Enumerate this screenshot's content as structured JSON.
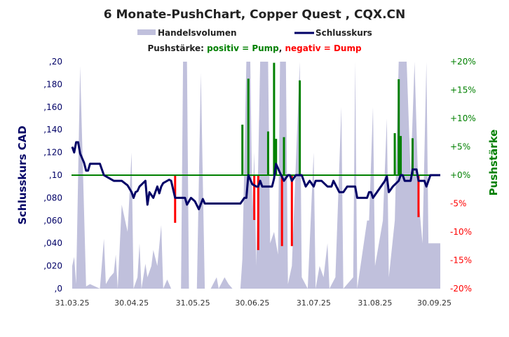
{
  "chart_data": {
    "type": "bar+line+area",
    "title": "6 Monate-PushChart,  Copper Quest , CQX.CN",
    "legend": {
      "volume_label": "Handelsvolumen",
      "close_label": "Schlusskurs",
      "push_prefix": "Pushstärke: ",
      "push_positive": "positiv = Pump",
      "push_sep": ", ",
      "push_negative": "negativ = Dump",
      "placement": "top"
    },
    "ylabel_left": "Schlusskurs CAD",
    "ylabel_right": "Pushstärke",
    "ylim_left": [
      0,
      0.2
    ],
    "ylim_right": [
      -20,
      20
    ],
    "xlim": [
      "2025-03-31",
      "2025-10-03"
    ],
    "grid": false,
    "left_ticks": [
      {
        "v": 0.2,
        "label": ",20"
      },
      {
        "v": 0.18,
        "label": ",180"
      },
      {
        "v": 0.16,
        "label": ",160"
      },
      {
        "v": 0.14,
        "label": ",140"
      },
      {
        "v": 0.12,
        "label": ",120"
      },
      {
        "v": 0.1,
        "label": ",10"
      },
      {
        "v": 0.08,
        "label": ",080"
      },
      {
        "v": 0.06,
        "label": ",060"
      },
      {
        "v": 0.04,
        "label": ",040"
      },
      {
        "v": 0.02,
        "label": ",020"
      },
      {
        "v": 0,
        "label": ",0"
      }
    ],
    "right_ticks": [
      {
        "v": 20,
        "label": "+20%"
      },
      {
        "v": 15,
        "label": "+15%"
      },
      {
        "v": 10,
        "label": "+10%"
      },
      {
        "v": 5,
        "label": "+5%"
      },
      {
        "v": 0,
        "label": "+0%"
      },
      {
        "v": -5,
        "label": "-5%"
      },
      {
        "v": -10,
        "label": "-10%"
      },
      {
        "v": -15,
        "label": "-15%"
      },
      {
        "v": -20,
        "label": "-20%"
      }
    ],
    "x_ticks": [
      {
        "date": "2025-03-31",
        "label": "31.03.25"
      },
      {
        "date": "2025-04-30",
        "label": "30.04.25"
      },
      {
        "date": "2025-05-31",
        "label": "31.05.25"
      },
      {
        "date": "2025-06-30",
        "label": "30.06.25"
      },
      {
        "date": "2025-07-31",
        "label": "31.07.25"
      },
      {
        "date": "2025-08-31",
        "label": "31.08.25"
      },
      {
        "date": "2025-09-30",
        "label": "30.09.25"
      }
    ],
    "colors": {
      "volume": "#c0c0dc",
      "close": "#000066",
      "pump": "#008000",
      "dump": "#ff0000",
      "zero_line": "#008000",
      "title": "#222222"
    },
    "close": [
      [
        "2025-03-31",
        0.125
      ],
      [
        "2025-04-01",
        0.12
      ],
      [
        "2025-04-02",
        0.129
      ],
      [
        "2025-04-03",
        0.129
      ],
      [
        "2025-04-04",
        0.119
      ],
      [
        "2025-04-06",
        0.111
      ],
      [
        "2025-04-07",
        0.104
      ],
      [
        "2025-04-08",
        0.104
      ],
      [
        "2025-04-09",
        0.11
      ],
      [
        "2025-04-14",
        0.11
      ],
      [
        "2025-04-16",
        0.1
      ],
      [
        "2025-04-21",
        0.095
      ],
      [
        "2025-04-25",
        0.095
      ],
      [
        "2025-04-28",
        0.091
      ],
      [
        "2025-04-30",
        0.085
      ],
      [
        "2025-05-01",
        0.08
      ],
      [
        "2025-05-02",
        0.085
      ],
      [
        "2025-05-03",
        0.086
      ],
      [
        "2025-05-04",
        0.09
      ],
      [
        "2025-05-07",
        0.095
      ],
      [
        "2025-05-08",
        0.074
      ],
      [
        "2025-05-09",
        0.085
      ],
      [
        "2025-05-11",
        0.08
      ],
      [
        "2025-05-13",
        0.09
      ],
      [
        "2025-05-14",
        0.084
      ],
      [
        "2025-05-15",
        0.09
      ],
      [
        "2025-05-16",
        0.093
      ],
      [
        "2025-05-19",
        0.096
      ],
      [
        "2025-05-20",
        0.095
      ],
      [
        "2025-05-22",
        0.08
      ],
      [
        "2025-05-27",
        0.08
      ],
      [
        "2025-05-28",
        0.074
      ],
      [
        "2025-05-30",
        0.08
      ],
      [
        "2025-06-01",
        0.077
      ],
      [
        "2025-06-03",
        0.07
      ],
      [
        "2025-06-05",
        0.079
      ],
      [
        "2025-06-06",
        0.075
      ],
      [
        "2025-06-24",
        0.075
      ],
      [
        "2025-06-26",
        0.08
      ],
      [
        "2025-06-27",
        0.08
      ],
      [
        "2025-06-28",
        0.1
      ],
      [
        "2025-06-30",
        0.092
      ],
      [
        "2025-07-02",
        0.09
      ],
      [
        "2025-07-03",
        0.09
      ],
      [
        "2025-07-04",
        0.095
      ],
      [
        "2025-07-05",
        0.09
      ],
      [
        "2025-07-10",
        0.09
      ],
      [
        "2025-07-11",
        0.097
      ],
      [
        "2025-07-12",
        0.11
      ],
      [
        "2025-07-14",
        0.102
      ],
      [
        "2025-07-16",
        0.095
      ],
      [
        "2025-07-18",
        0.1
      ],
      [
        "2025-07-19",
        0.1
      ],
      [
        "2025-07-20",
        0.095
      ],
      [
        "2025-07-22",
        0.1
      ],
      [
        "2025-07-25",
        0.1
      ],
      [
        "2025-07-27",
        0.09
      ],
      [
        "2025-07-29",
        0.095
      ],
      [
        "2025-07-31",
        0.09
      ],
      [
        "2025-08-01",
        0.095
      ],
      [
        "2025-08-04",
        0.095
      ],
      [
        "2025-08-07",
        0.09
      ],
      [
        "2025-08-09",
        0.09
      ],
      [
        "2025-08-10",
        0.095
      ],
      [
        "2025-08-13",
        0.085
      ],
      [
        "2025-08-15",
        0.085
      ],
      [
        "2025-08-17",
        0.09
      ],
      [
        "2025-08-21",
        0.09
      ],
      [
        "2025-08-22",
        0.08
      ],
      [
        "2025-08-27",
        0.08
      ],
      [
        "2025-08-28",
        0.085
      ],
      [
        "2025-08-29",
        0.085
      ],
      [
        "2025-08-30",
        0.08
      ],
      [
        "2025-09-01",
        0.085
      ],
      [
        "2025-09-05",
        0.095
      ],
      [
        "2025-09-06",
        0.099
      ],
      [
        "2025-09-07",
        0.085
      ],
      [
        "2025-09-09",
        0.09
      ],
      [
        "2025-09-12",
        0.095
      ],
      [
        "2025-09-13",
        0.1
      ],
      [
        "2025-09-14",
        0.1
      ],
      [
        "2025-09-15",
        0.095
      ],
      [
        "2025-09-18",
        0.095
      ],
      [
        "2025-09-19",
        0.105
      ],
      [
        "2025-09-21",
        0.105
      ],
      [
        "2025-09-22",
        0.095
      ],
      [
        "2025-09-25",
        0.095
      ],
      [
        "2025-09-26",
        0.09
      ],
      [
        "2025-09-28",
        0.1
      ],
      [
        "2025-10-03",
        0.1
      ]
    ],
    "push": [
      [
        "2025-05-22",
        -8.4
      ],
      [
        "2025-06-25",
        8.9
      ],
      [
        "2025-06-28",
        17.0
      ],
      [
        "2025-07-01",
        -7.9
      ],
      [
        "2025-07-03",
        -13.2
      ],
      [
        "2025-07-08",
        7.7
      ],
      [
        "2025-07-11",
        19.8
      ],
      [
        "2025-07-12",
        6.4
      ],
      [
        "2025-07-15",
        -12.5
      ],
      [
        "2025-07-16",
        6.7
      ],
      [
        "2025-07-20",
        -12.5
      ],
      [
        "2025-07-24",
        16.7
      ],
      [
        "2025-09-10",
        7.4
      ],
      [
        "2025-09-12",
        16.9
      ],
      [
        "2025-09-13",
        6.9
      ],
      [
        "2025-09-19",
        6.5
      ],
      [
        "2025-09-22",
        -7.4
      ]
    ],
    "volume_relative": [
      [
        "2025-03-31",
        0.1
      ],
      [
        "2025-04-01",
        0.14
      ],
      [
        "2025-04-02",
        0.02
      ],
      [
        "2025-04-04",
        0.98
      ],
      [
        "2025-04-07",
        0.01
      ],
      [
        "2025-04-09",
        0.02
      ],
      [
        "2025-04-14",
        0
      ],
      [
        "2025-04-16",
        0.22
      ],
      [
        "2025-04-17",
        0.02
      ],
      [
        "2025-04-19",
        0.05
      ],
      [
        "2025-04-21",
        0.07
      ],
      [
        "2025-04-22",
        0.15
      ],
      [
        "2025-04-23",
        0
      ],
      [
        "2025-04-25",
        0.37
      ],
      [
        "2025-04-28",
        0.25
      ],
      [
        "2025-04-30",
        0.6
      ],
      [
        "2025-05-01",
        0
      ],
      [
        "2025-05-03",
        0.05
      ],
      [
        "2025-05-04",
        0.2
      ],
      [
        "2025-05-05",
        0
      ],
      [
        "2025-05-07",
        0.11
      ],
      [
        "2025-05-08",
        0.05
      ],
      [
        "2025-05-10",
        0.1
      ],
      [
        "2025-05-11",
        0.17
      ],
      [
        "2025-05-13",
        0.1
      ],
      [
        "2025-05-15",
        0.28
      ],
      [
        "2025-05-16",
        0
      ],
      [
        "2025-05-18",
        0.04
      ],
      [
        "2025-05-20",
        0
      ],
      [
        "2025-05-25",
        0
      ],
      [
        "2025-05-26",
        1
      ],
      [
        "2025-05-28",
        1
      ],
      [
        "2025-05-29",
        0
      ],
      [
        "2025-06-02",
        0
      ],
      [
        "2025-06-04",
        0.95
      ],
      [
        "2025-06-06",
        0
      ],
      [
        "2025-06-09",
        0
      ],
      [
        "2025-06-12",
        0.05
      ],
      [
        "2025-06-13",
        0
      ],
      [
        "2025-06-16",
        0.05
      ],
      [
        "2025-06-18",
        0.02
      ],
      [
        "2025-06-20",
        0
      ],
      [
        "2025-06-24",
        0
      ],
      [
        "2025-06-25",
        0.13
      ],
      [
        "2025-06-27",
        1
      ],
      [
        "2025-06-29",
        1
      ],
      [
        "2025-06-30",
        0.35
      ],
      [
        "2025-07-01",
        0.6
      ],
      [
        "2025-07-02",
        0.1
      ],
      [
        "2025-07-04",
        1
      ],
      [
        "2025-07-08",
        1
      ],
      [
        "2025-07-09",
        0.2
      ],
      [
        "2025-07-11",
        0.25
      ],
      [
        "2025-07-13",
        0.15
      ],
      [
        "2025-07-14",
        1
      ],
      [
        "2025-07-17",
        1
      ],
      [
        "2025-07-18",
        0.02
      ],
      [
        "2025-07-20",
        0.1
      ],
      [
        "2025-07-24",
        1
      ],
      [
        "2025-07-25",
        0.05
      ],
      [
        "2025-07-28",
        0
      ],
      [
        "2025-07-31",
        0.6
      ],
      [
        "2025-08-01",
        0
      ],
      [
        "2025-08-03",
        0.1
      ],
      [
        "2025-08-05",
        0.05
      ],
      [
        "2025-08-07",
        0.2
      ],
      [
        "2025-08-08",
        0
      ],
      [
        "2025-08-11",
        0.05
      ],
      [
        "2025-08-14",
        0.8
      ],
      [
        "2025-08-15",
        0
      ],
      [
        "2025-08-20",
        0.05
      ],
      [
        "2025-08-21",
        1
      ],
      [
        "2025-08-22",
        0
      ],
      [
        "2025-08-27",
        0.3
      ],
      [
        "2025-08-28",
        0.3
      ],
      [
        "2025-08-30",
        0.8
      ],
      [
        "2025-08-31",
        0.1
      ],
      [
        "2025-09-04",
        0.3
      ],
      [
        "2025-09-06",
        0.75
      ],
      [
        "2025-09-07",
        0.05
      ],
      [
        "2025-09-10",
        0.3
      ],
      [
        "2025-09-12",
        1
      ],
      [
        "2025-09-16",
        1
      ],
      [
        "2025-09-18",
        0.5
      ],
      [
        "2025-09-20",
        1
      ],
      [
        "2025-09-22",
        0.4
      ],
      [
        "2025-09-24",
        0.2
      ],
      [
        "2025-09-26",
        1
      ],
      [
        "2025-09-27",
        0.2
      ],
      [
        "2025-10-03",
        0.2
      ]
    ]
  }
}
